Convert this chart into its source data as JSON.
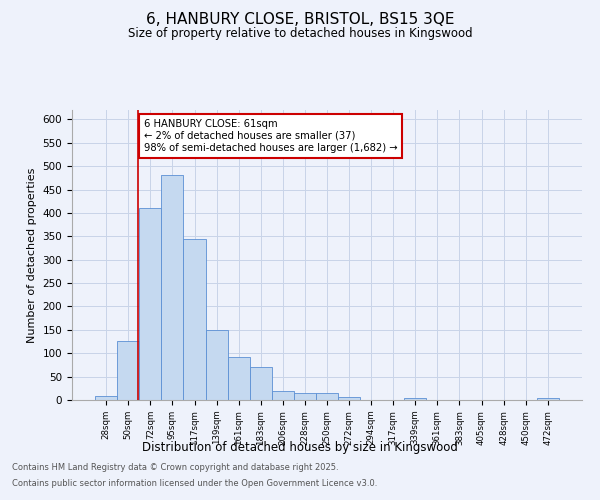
{
  "title": "6, HANBURY CLOSE, BRISTOL, BS15 3QE",
  "subtitle": "Size of property relative to detached houses in Kingswood",
  "xlabel": "Distribution of detached houses by size in Kingswood",
  "ylabel": "Number of detached properties",
  "bin_labels": [
    "28sqm",
    "50sqm",
    "72sqm",
    "95sqm",
    "117sqm",
    "139sqm",
    "161sqm",
    "183sqm",
    "206sqm",
    "228sqm",
    "250sqm",
    "272sqm",
    "294sqm",
    "317sqm",
    "339sqm",
    "361sqm",
    "383sqm",
    "405sqm",
    "428sqm",
    "450sqm",
    "472sqm"
  ],
  "bin_values": [
    8,
    127,
    410,
    480,
    344,
    149,
    91,
    70,
    19,
    14,
    14,
    6,
    0,
    0,
    4,
    0,
    0,
    0,
    0,
    0,
    4
  ],
  "bar_color": "#c5d9f0",
  "bar_edge_color": "#5b8fd4",
  "grid_color": "#c8d4e8",
  "property_line_x": 1.45,
  "annotation_text": "6 HANBURY CLOSE: 61sqm\n← 2% of detached houses are smaller (37)\n98% of semi-detached houses are larger (1,682) →",
  "annotation_box_color": "#ffffff",
  "annotation_box_edge": "#cc0000",
  "annotation_text_color": "#000000",
  "vline_color": "#cc0000",
  "footer_line1": "Contains HM Land Registry data © Crown copyright and database right 2025.",
  "footer_line2": "Contains public sector information licensed under the Open Government Licence v3.0.",
  "ylim": [
    0,
    620
  ],
  "yticks": [
    0,
    50,
    100,
    150,
    200,
    250,
    300,
    350,
    400,
    450,
    500,
    550,
    600
  ],
  "background_color": "#eef2fb",
  "plot_bg_color": "#eef2fb"
}
